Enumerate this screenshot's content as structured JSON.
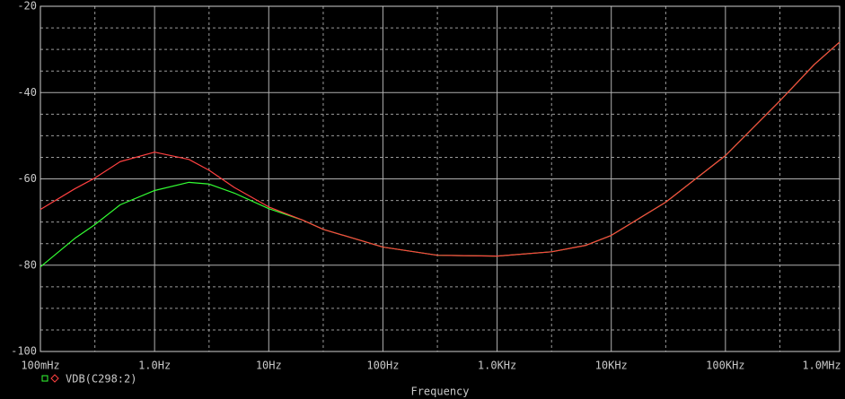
{
  "chart_data": {
    "type": "line",
    "xlabel": "Frequency",
    "xscale": "log",
    "xlim": [
      0.1,
      1000000
    ],
    "xticks": [
      {
        "value": 0.1,
        "label": "100mHz"
      },
      {
        "value": 1,
        "label": "1.0Hz"
      },
      {
        "value": 10,
        "label": "10Hz"
      },
      {
        "value": 100,
        "label": "100Hz"
      },
      {
        "value": 1000,
        "label": "1.0KHz"
      },
      {
        "value": 10000,
        "label": "10KHz"
      },
      {
        "value": 100000,
        "label": "100KHz"
      },
      {
        "value": 1000000,
        "label": "1.0MHz"
      }
    ],
    "xminor": [
      0.3,
      3,
      30,
      300,
      3000,
      30000,
      300000
    ],
    "ylim": [
      -100,
      -20
    ],
    "yticks": [
      -20,
      -40,
      -60,
      -80,
      -100
    ],
    "yminor": [
      -25,
      -30,
      -35,
      -45,
      -50,
      -55,
      -65,
      -70,
      -75,
      -85,
      -90,
      -95
    ],
    "grid": true,
    "x": [
      0.1,
      0.2,
      0.3,
      0.5,
      1,
      2,
      3,
      5,
      10,
      20,
      30,
      100,
      300,
      1000,
      3000,
      6000,
      10000,
      30000,
      100000,
      300000,
      600000,
      1000000
    ],
    "series": [
      {
        "color": "#33ff33",
        "values": [
          -80.4,
          -73.8,
          -70.6,
          -66,
          -62.7,
          -60.8,
          -61.2,
          -63.3,
          -66.9,
          -69.6,
          -71.7,
          -75.8,
          -77.7,
          -77.9,
          -76.9,
          -75.4,
          -73.1,
          -65.4,
          -54.6,
          -41.9,
          -33.5,
          -28.3
        ]
      },
      {
        "name": "VDB(C298:2)",
        "color": "#ff4040",
        "values": [
          -67.1,
          -62.3,
          -59.8,
          -56,
          -53.8,
          -55.5,
          -58,
          -62,
          -66.5,
          -69.6,
          -71.7,
          -75.8,
          -77.7,
          -77.9,
          -76.9,
          -75.4,
          -73.1,
          -65.4,
          -54.6,
          -41.9,
          -33.5,
          -28.3
        ]
      }
    ]
  }
}
